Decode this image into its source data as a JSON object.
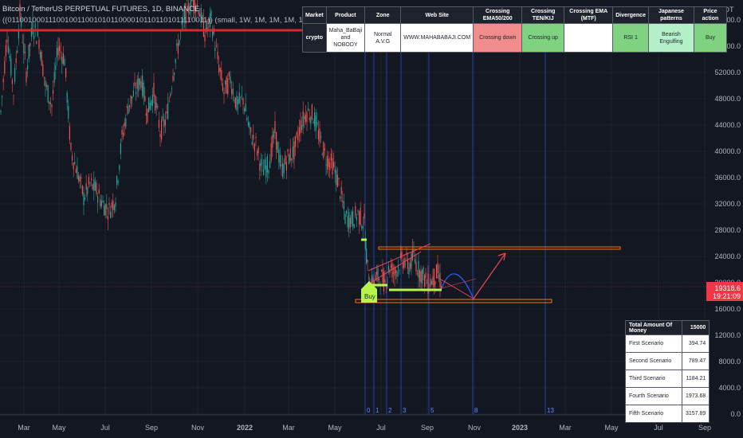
{
  "header": {
    "title": "Bitcoin / TetherUS PERPETUAL FUTURES, 1D, BINANCE",
    "indicator": "((0110010001110010011001010110000101101101011110011))  (small, 1W, 1M, 1M, 1M, 1W, 15000, 3, 60, 15)"
  },
  "info_table": {
    "headers": [
      "Market",
      "Product",
      "Zone",
      "Web Site",
      "Crossing EMA50/200",
      "Crossing TEN/KIJ",
      "Crossing  EMA (MTF)",
      "Divergence",
      "Japanese patterns",
      "Price action"
    ],
    "market": "crypto",
    "product": "Maha_BaBaji and NOBODY",
    "zone": "Normal A.V.G",
    "website": "WWW.MAHABABAJI.COM",
    "ema50_200": "Crossing down",
    "ten_kij": "Crossing up",
    "ema_mtf": "",
    "divergence": "RSI 1",
    "japanese": "Bearish Engulfing",
    "price_action": "Buy"
  },
  "money_table": {
    "header_label": "Total Amount Of Money",
    "header_value": "15000",
    "rows": [
      {
        "label": "First Scenario",
        "value": "394.74"
      },
      {
        "label": "Second Scenario",
        "value": "789.47"
      },
      {
        "label": "Third Scenario",
        "value": "1184.21"
      },
      {
        "label": "Fourth Scenario",
        "value": "1973.68"
      },
      {
        "label": "Fifth Scenario",
        "value": "3157.89"
      }
    ]
  },
  "chart_data": {
    "type": "candlestick",
    "y_unit": "USDT",
    "y_ticks": [
      "60000.0",
      "56000.0",
      "52000.0",
      "48000.0",
      "44000.0",
      "40000.0",
      "36000.0",
      "32000.0",
      "28000.0",
      "24000.0",
      "20000.0",
      "16000.0",
      "12000.0",
      "8000.0",
      "4000.0",
      "0.0"
    ],
    "ylim": [
      0,
      63000
    ],
    "x_ticks": [
      "Mar",
      "May",
      "Jul",
      "Sep",
      "Nov",
      "2022",
      "Mar",
      "May",
      "Jul",
      "Sep",
      "Nov",
      "2023",
      "Mar",
      "May",
      "Jul",
      "Sep"
    ],
    "last_price": "19318.6",
    "countdown": "19:21:09",
    "colors": {
      "up": "#26a69a",
      "down": "#ef5350",
      "background": "#131722",
      "grid": "#2a2e39",
      "text": "#b2b5be"
    },
    "price_path": [
      {
        "x": 0,
        "y": 46000
      },
      {
        "x": 8,
        "y": 58000
      },
      {
        "x": 16,
        "y": 49000
      },
      {
        "x": 24,
        "y": 61000
      },
      {
        "x": 32,
        "y": 52000
      },
      {
        "x": 40,
        "y": 59000
      },
      {
        "x": 48,
        "y": 57000
      },
      {
        "x": 56,
        "y": 50000
      },
      {
        "x": 64,
        "y": 47000
      },
      {
        "x": 72,
        "y": 56000
      },
      {
        "x": 80,
        "y": 54000
      },
      {
        "x": 88,
        "y": 40000
      },
      {
        "x": 96,
        "y": 37000
      },
      {
        "x": 104,
        "y": 33000
      },
      {
        "x": 112,
        "y": 35000
      },
      {
        "x": 120,
        "y": 34000
      },
      {
        "x": 128,
        "y": 32000
      },
      {
        "x": 136,
        "y": 31000
      },
      {
        "x": 144,
        "y": 33000
      },
      {
        "x": 152,
        "y": 42000
      },
      {
        "x": 160,
        "y": 47000
      },
      {
        "x": 168,
        "y": 49000
      },
      {
        "x": 176,
        "y": 51000
      },
      {
        "x": 184,
        "y": 46000
      },
      {
        "x": 192,
        "y": 49000
      },
      {
        "x": 200,
        "y": 43000
      },
      {
        "x": 208,
        "y": 45000
      },
      {
        "x": 216,
        "y": 52000
      },
      {
        "x": 224,
        "y": 57000
      },
      {
        "x": 232,
        "y": 61000
      },
      {
        "x": 240,
        "y": 63000
      },
      {
        "x": 248,
        "y": 62000
      },
      {
        "x": 256,
        "y": 58000
      },
      {
        "x": 264,
        "y": 60000
      },
      {
        "x": 272,
        "y": 54000
      },
      {
        "x": 280,
        "y": 49000
      },
      {
        "x": 288,
        "y": 51000
      },
      {
        "x": 296,
        "y": 47000
      },
      {
        "x": 304,
        "y": 48000
      },
      {
        "x": 312,
        "y": 43000
      },
      {
        "x": 320,
        "y": 41000
      },
      {
        "x": 328,
        "y": 37000
      },
      {
        "x": 336,
        "y": 38000
      },
      {
        "x": 344,
        "y": 43000
      },
      {
        "x": 352,
        "y": 37000
      },
      {
        "x": 360,
        "y": 39000
      },
      {
        "x": 368,
        "y": 40000
      },
      {
        "x": 376,
        "y": 44000
      },
      {
        "x": 384,
        "y": 46000
      },
      {
        "x": 392,
        "y": 45500
      },
      {
        "x": 400,
        "y": 42000
      },
      {
        "x": 408,
        "y": 39000
      },
      {
        "x": 416,
        "y": 38000
      },
      {
        "x": 424,
        "y": 35000
      },
      {
        "x": 432,
        "y": 30000
      },
      {
        "x": 440,
        "y": 29500
      },
      {
        "x": 448,
        "y": 30500
      },
      {
        "x": 456,
        "y": 29000
      },
      {
        "x": 460,
        "y": 22000
      },
      {
        "x": 464,
        "y": 19500
      },
      {
        "x": 470,
        "y": 20500
      },
      {
        "x": 476,
        "y": 21000
      },
      {
        "x": 482,
        "y": 20000
      },
      {
        "x": 488,
        "y": 22500
      },
      {
        "x": 494,
        "y": 21500
      },
      {
        "x": 500,
        "y": 23000
      },
      {
        "x": 506,
        "y": 23500
      },
      {
        "x": 512,
        "y": 22500
      },
      {
        "x": 518,
        "y": 24000
      },
      {
        "x": 524,
        "y": 22000
      },
      {
        "x": 530,
        "y": 21000
      },
      {
        "x": 536,
        "y": 19800
      },
      {
        "x": 542,
        "y": 20500
      },
      {
        "x": 548,
        "y": 21500
      },
      {
        "x": 554,
        "y": 19300
      }
    ]
  }
}
